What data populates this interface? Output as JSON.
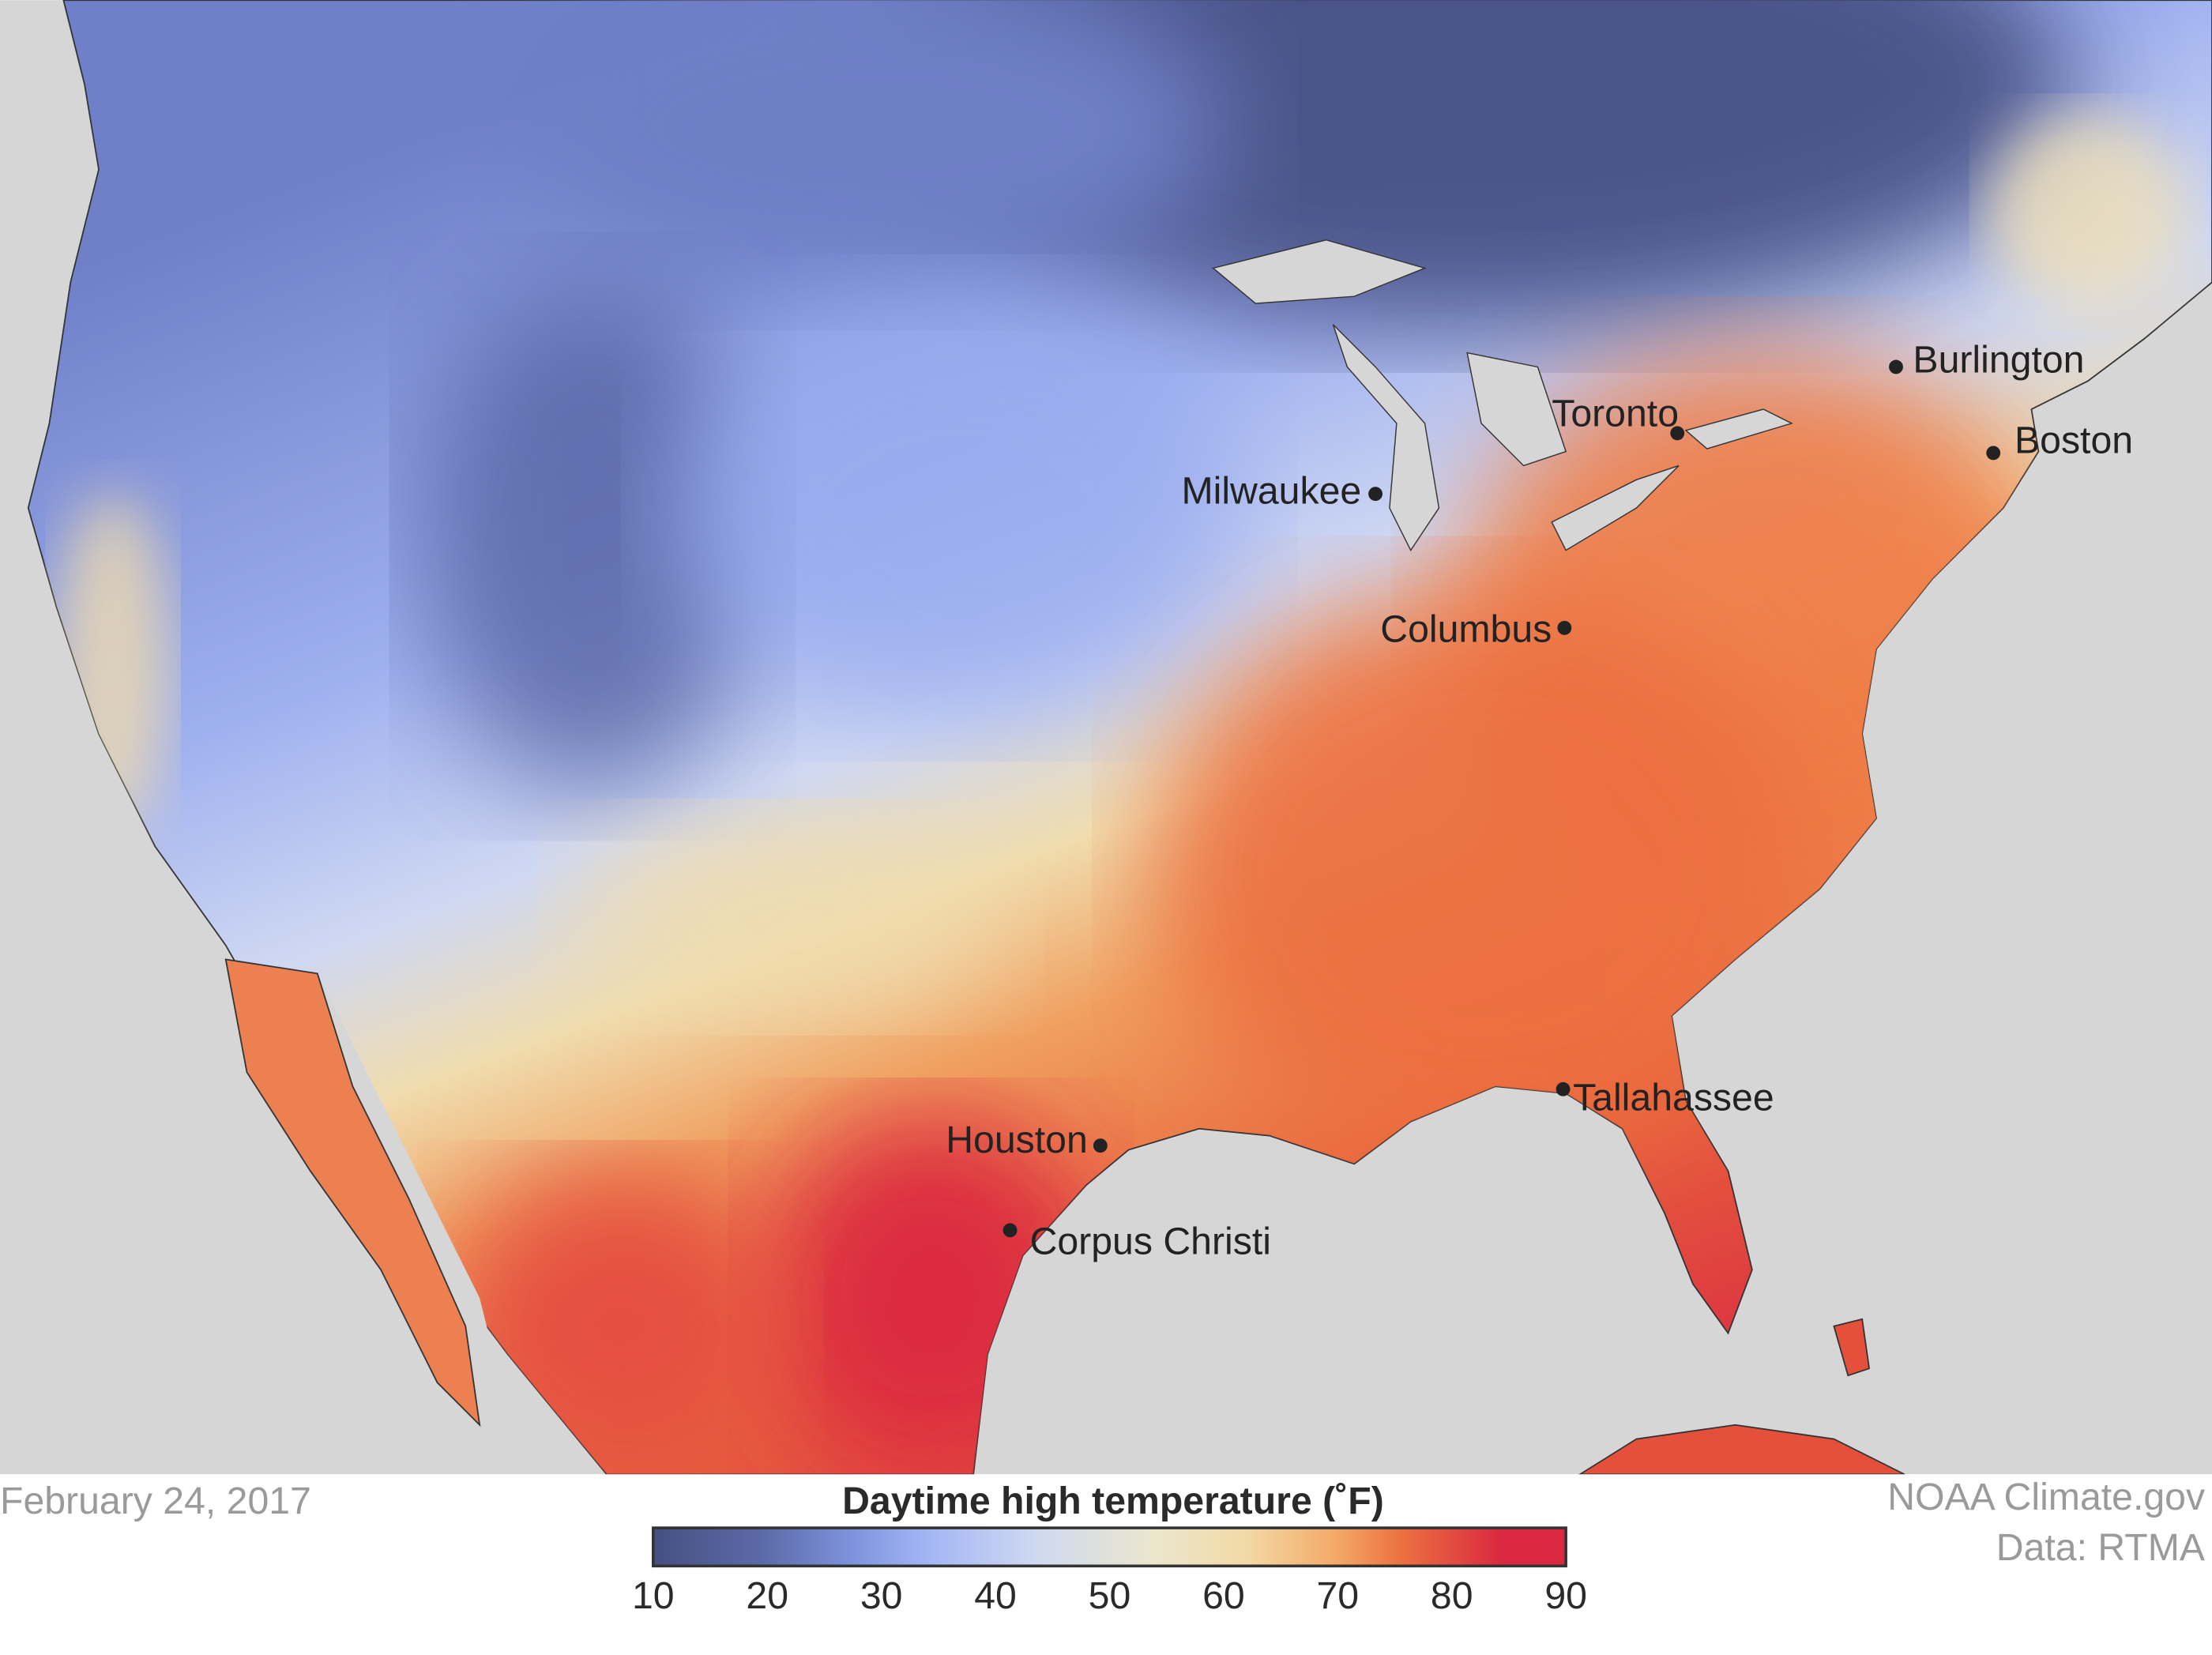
{
  "date": "February 24, 2017",
  "credit": "NOAA Climate.gov",
  "data_source": "Data: RTMA",
  "legend": {
    "title": "Daytime high temperature (˚F)",
    "ticks": [
      "10",
      "20",
      "30",
      "40",
      "50",
      "60",
      "70",
      "80",
      "90"
    ],
    "range": [
      10,
      90
    ],
    "colors": [
      "#464f80",
      "#5b6aa8",
      "#7f94de",
      "#a3b5f5",
      "#cfd9f0",
      "#ebe6cc",
      "#f3d9a6",
      "#f3a866",
      "#ec7040",
      "#d92840"
    ]
  },
  "cities": [
    {
      "name": "Burlington"
    },
    {
      "name": "Toronto"
    },
    {
      "name": "Boston"
    },
    {
      "name": "Milwaukee"
    },
    {
      "name": "Columbus"
    },
    {
      "name": "Houston"
    },
    {
      "name": "Corpus Christi"
    },
    {
      "name": "Tallahassee"
    }
  ],
  "colors": {
    "ocean": "#d6d6d6",
    "border": "#333333"
  }
}
